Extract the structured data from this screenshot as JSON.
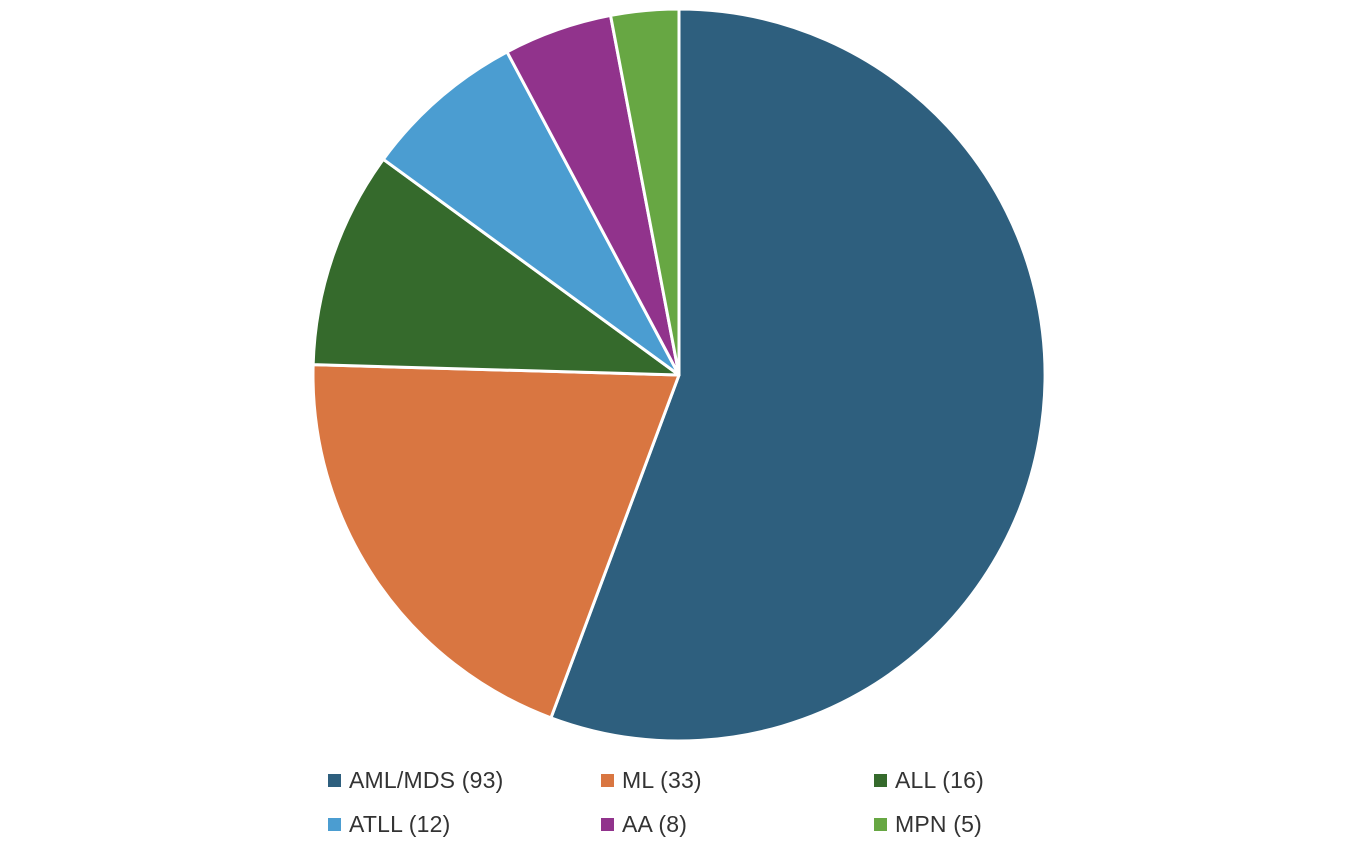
{
  "chart_data": {
    "type": "pie",
    "categories": [
      "AML/MDS",
      "ML",
      "ALL",
      "ATLL",
      "AA",
      "MPN"
    ],
    "values": [
      93,
      33,
      16,
      12,
      8,
      5
    ],
    "colors": [
      "#2e5f7e",
      "#d97641",
      "#356a2c",
      "#4b9dd1",
      "#91338c",
      "#67a743"
    ],
    "start_angle": "12 o'clock",
    "direction": "clockwise",
    "slice_border_color": "#ffffff",
    "legend_position": "bottom",
    "title": "",
    "legend": [
      {
        "label": "AML/MDS (93)",
        "color": "#2e5f7e"
      },
      {
        "label": "ML (33)",
        "color": "#d97641"
      },
      {
        "label": "ALL (16)",
        "color": "#356a2c"
      },
      {
        "label": "ATLL (12)",
        "color": "#4b9dd1"
      },
      {
        "label": "AA (8)",
        "color": "#91338c"
      },
      {
        "label": "MPN (5)",
        "color": "#67a743"
      }
    ]
  }
}
